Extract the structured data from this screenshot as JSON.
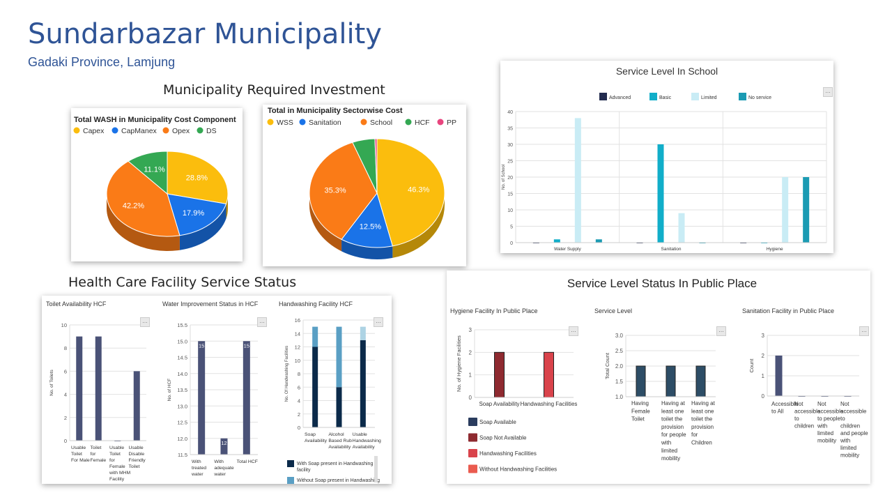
{
  "header": {
    "title": "Sundarbazar Municipality",
    "subtitle": "Gadaki Province, Lamjung"
  },
  "sections": {
    "investment": "Municipality Required Investment",
    "school": "Service Level In School",
    "hcf": "Health Care Facility Service Status",
    "public": "Service Level Status In Public Place"
  },
  "colors": {
    "accent": "#2f5496"
  },
  "chart_data": [
    {
      "id": "wash_cost",
      "type": "pie",
      "title": "Total WASH in Municipality Cost Component",
      "legend": [
        "Capex",
        "CapManex",
        "Opex",
        "DS"
      ],
      "values": [
        28.8,
        17.9,
        42.2,
        11.1
      ],
      "labels": [
        "28.8%",
        "17.9%",
        "42.2%",
        "11.1%"
      ],
      "colors": [
        "#fbbd0d",
        "#1a73e8",
        "#fa7b17",
        "#34a853"
      ],
      "legend_position": "top"
    },
    {
      "id": "sector_cost",
      "type": "pie",
      "title": "Total in Municipality Sectorwise Cost",
      "legend": [
        "WSS",
        "Sanitation",
        "School",
        "HCF",
        "PP"
      ],
      "values": [
        46.3,
        12.5,
        35.3,
        5.4,
        0.5
      ],
      "labels": [
        "46.3%",
        "12.5%",
        "35.3%",
        "",
        ""
      ],
      "colors": [
        "#fbbd0d",
        "#1a73e8",
        "#fa7b17",
        "#34a853",
        "#e8457e"
      ],
      "legend_position": "top"
    },
    {
      "id": "school",
      "type": "bar",
      "title": "Service Level In School",
      "categories": [
        "Water Supply",
        "Sanitation",
        "Hygiene"
      ],
      "series": [
        {
          "name": "Advanced",
          "values": [
            0,
            0,
            0
          ]
        },
        {
          "name": "Basic",
          "values": [
            1,
            30,
            0
          ]
        },
        {
          "name": "Limited",
          "values": [
            38,
            9,
            20
          ]
        },
        {
          "name": "No service",
          "values": [
            1,
            0,
            20
          ]
        }
      ],
      "colors": [
        "#232c4f",
        "#11aec9",
        "#c9ecf5",
        "#1b9bb3"
      ],
      "ylabel": "No. of School",
      "ylim": [
        0,
        40
      ],
      "yticks": [
        "0",
        "5",
        "10",
        "15",
        "20",
        "25",
        "30",
        "35",
        "40"
      ]
    },
    {
      "id": "toilet_hcf",
      "type": "bar",
      "title": "Toilet Availability HCF",
      "categories": [
        "Usable Toilet For Male",
        "Toilet for Female",
        "Usable Toilet for Female with MHM Facility",
        "Usable Disable Friendly Toilet"
      ],
      "values": [
        9,
        9,
        0,
        6
      ],
      "ylabel": "No. of Toilets",
      "ylim": [
        0,
        10
      ],
      "yticks": [
        "0",
        "2",
        "4",
        "6",
        "8",
        "10"
      ],
      "color": "#4a5277"
    },
    {
      "id": "water_hcf",
      "type": "bar",
      "title": "Water Improvement Status in HCF",
      "categories": [
        "With treated water",
        "With adequate water",
        "Total HCF"
      ],
      "values": [
        15,
        12,
        15
      ],
      "labels": [
        "15",
        "12",
        "15"
      ],
      "ylabel": "No. of HCF",
      "ylim": [
        11.5,
        15.5
      ],
      "yticks": [
        "11.5",
        "12.0",
        "12.5",
        "13.0",
        "13.5",
        "14.0",
        "14.5",
        "15.0",
        "15.5"
      ],
      "color": "#4a5277"
    },
    {
      "id": "handwash_hcf",
      "type": "bar",
      "title": "Handwashing Facility HCF",
      "categories": [
        "Soap Availability",
        "Alcohol Based Rub Availability",
        "Usable Handwashing Availability"
      ],
      "series": [
        {
          "name": "With Soap present in Handwashing facility",
          "values": [
            12,
            6,
            13
          ]
        },
        {
          "name": "Without Soap present in Handwashing facility",
          "values": [
            3,
            9,
            0
          ]
        },
        {
          "name": "",
          "values": [
            0,
            0,
            2
          ]
        }
      ],
      "colors": [
        "#0b2a4a",
        "#5a9fc4",
        "#add3e4"
      ],
      "ylabel": "No. Of Handwashing Facilities",
      "ylim": [
        0,
        16
      ],
      "yticks": [
        "0",
        "2",
        "4",
        "6",
        "8",
        "10",
        "12",
        "14",
        "16"
      ]
    },
    {
      "id": "hygiene_public",
      "type": "bar",
      "title": "Hygiene Facility In Public Place",
      "categories": [
        "Soap Availability",
        "Handwashing Facilities"
      ],
      "values": [
        2,
        2
      ],
      "bar_colors": [
        "#8e2a30",
        "#d9434b"
      ],
      "ylabel": "No. of Hygiene Facilities",
      "ylim": [
        0,
        3
      ],
      "yticks": [
        "0",
        "1",
        "2",
        "3"
      ],
      "legend": [
        {
          "name": "Soap Available",
          "color": "#2a3c5e"
        },
        {
          "name": "Soap Not Available",
          "color": "#8e2a30"
        },
        {
          "name": "Handwashing Facilities",
          "color": "#d9434b"
        },
        {
          "name": "Without Handwashing Facilities",
          "color": "#ea5b4f"
        }
      ]
    },
    {
      "id": "service_public",
      "type": "bar",
      "title": "Service Level",
      "categories": [
        "Having Female Toilet",
        "Having at least one toilet the provision for people with limited mobility",
        "Having at least one toilet the provision for Children"
      ],
      "values": [
        2,
        2,
        2
      ],
      "ylabel": "Total Count",
      "ylim": [
        1.0,
        3.0
      ],
      "yticks": [
        "1.0",
        "1.5",
        "2.0",
        "2.5",
        "3.0"
      ],
      "color": "#2d4d66"
    },
    {
      "id": "sanitation_public",
      "type": "bar",
      "title": "Sanitation Facility in Public Place",
      "categories": [
        "Accessible to All",
        "Not accessible to children",
        "Not accessible to people with limited mobility",
        "Not accessible to children and people with limited mobility"
      ],
      "values": [
        2,
        0,
        0,
        0
      ],
      "ylabel": "Count",
      "ylim": [
        0,
        3
      ],
      "yticks": [
        "0",
        "1",
        "2",
        "3"
      ],
      "color": "#4a5277"
    }
  ]
}
